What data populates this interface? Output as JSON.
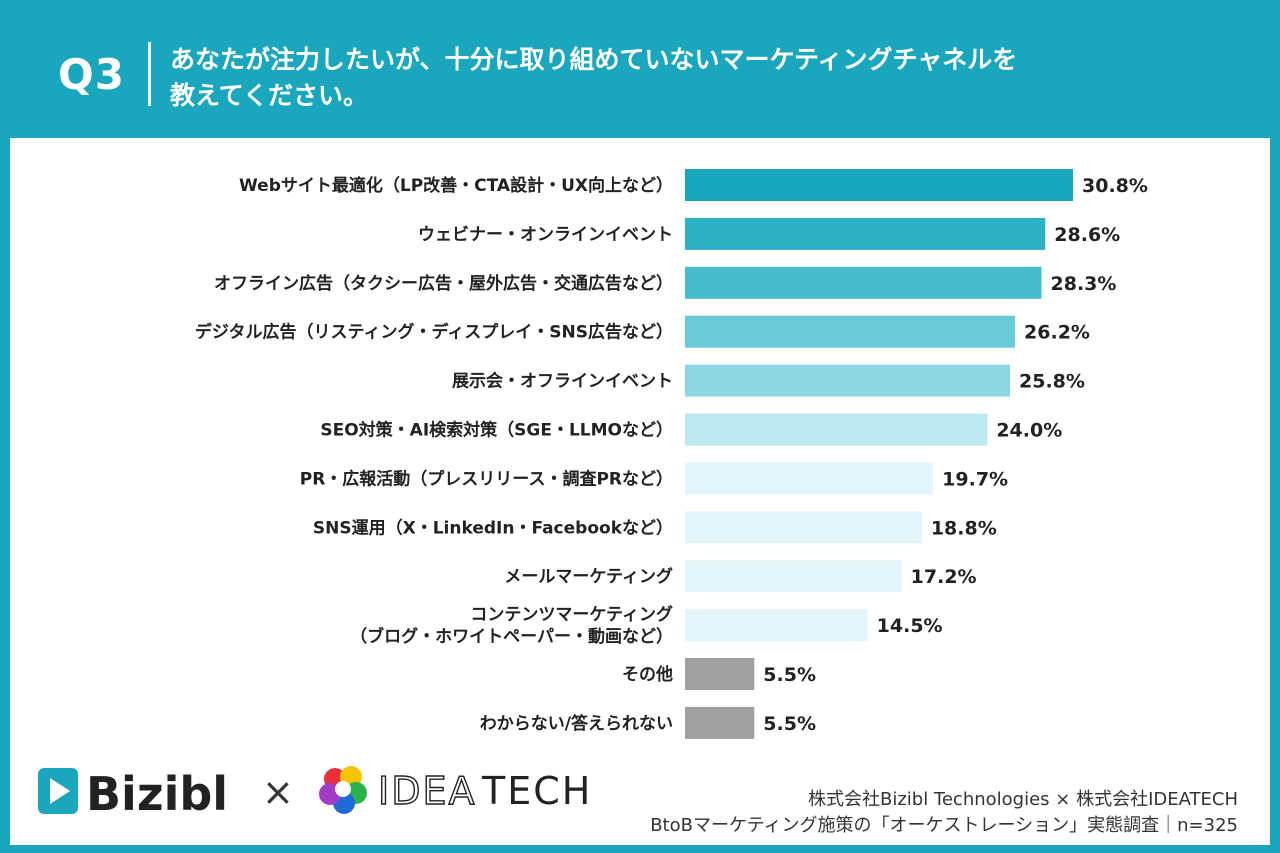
{
  "header": {
    "q_label": "Q3",
    "question_line1": "あなたが注力したいが、十分に取り組めていないマーケティングチャネルを",
    "question_line2": "教えてください。"
  },
  "chart_data": {
    "type": "bar",
    "orientation": "horizontal",
    "categories": [
      [
        "Webサイト最適化（LP改善・CTA設計・UX向上など）"
      ],
      [
        "ウェビナー・オンラインイベント"
      ],
      [
        "オフライン広告（タクシー広告・屋外広告・交通広告など）"
      ],
      [
        "デジタル広告（リスティング・ディスプレイ・SNS広告など）"
      ],
      [
        "展示会・オフラインイベント"
      ],
      [
        "SEO対策・AI検索対策（SGE・LLMOなど）"
      ],
      [
        "PR・広報活動（プレスリリース・調査PRなど）"
      ],
      [
        "SNS運用（X・LinkedIn・Facebookなど）"
      ],
      [
        "メールマーケティング"
      ],
      [
        "コンテンツマーケティング",
        "（ブログ・ホワイトペーパー・動画など）"
      ],
      [
        "その他"
      ],
      [
        "わからない/答えられない"
      ]
    ],
    "values": [
      30.8,
      28.6,
      28.3,
      26.2,
      25.8,
      24.0,
      19.7,
      18.8,
      17.2,
      14.5,
      5.5,
      5.5
    ],
    "value_labels": [
      "30.8%",
      "28.6%",
      "28.3%",
      "26.2%",
      "25.8%",
      "24.0%",
      "19.7%",
      "18.8%",
      "17.2%",
      "14.5%",
      "5.5%",
      "5.5%"
    ],
    "bar_colors": [
      "#18a6bd",
      "#2fb1c5",
      "#47bccd",
      "#6ac9d7",
      "#8cd6e1",
      "#bde8ef",
      "#e3f5f8",
      "#e3f5f8",
      "#e3f5f8",
      "#e3f5f8",
      "#a0a0a0",
      "#a0a0a0"
    ],
    "xlim": [
      0,
      30.8
    ]
  },
  "footer": {
    "logo1_text": "Bizibl",
    "times": "×",
    "logo2_text_a": "IDEA",
    "logo2_text_b": "TECH",
    "line1": "株式会社Bizibl Technologies × 株式会社IDEATECH",
    "line2": "BtoBマーケティング施策の「オーケストレーション」実態調査｜n=325"
  },
  "colors": {
    "brand": "#1aa7bd",
    "bizibl_blue": "#1aa7bd",
    "text_dark": "#222222"
  }
}
